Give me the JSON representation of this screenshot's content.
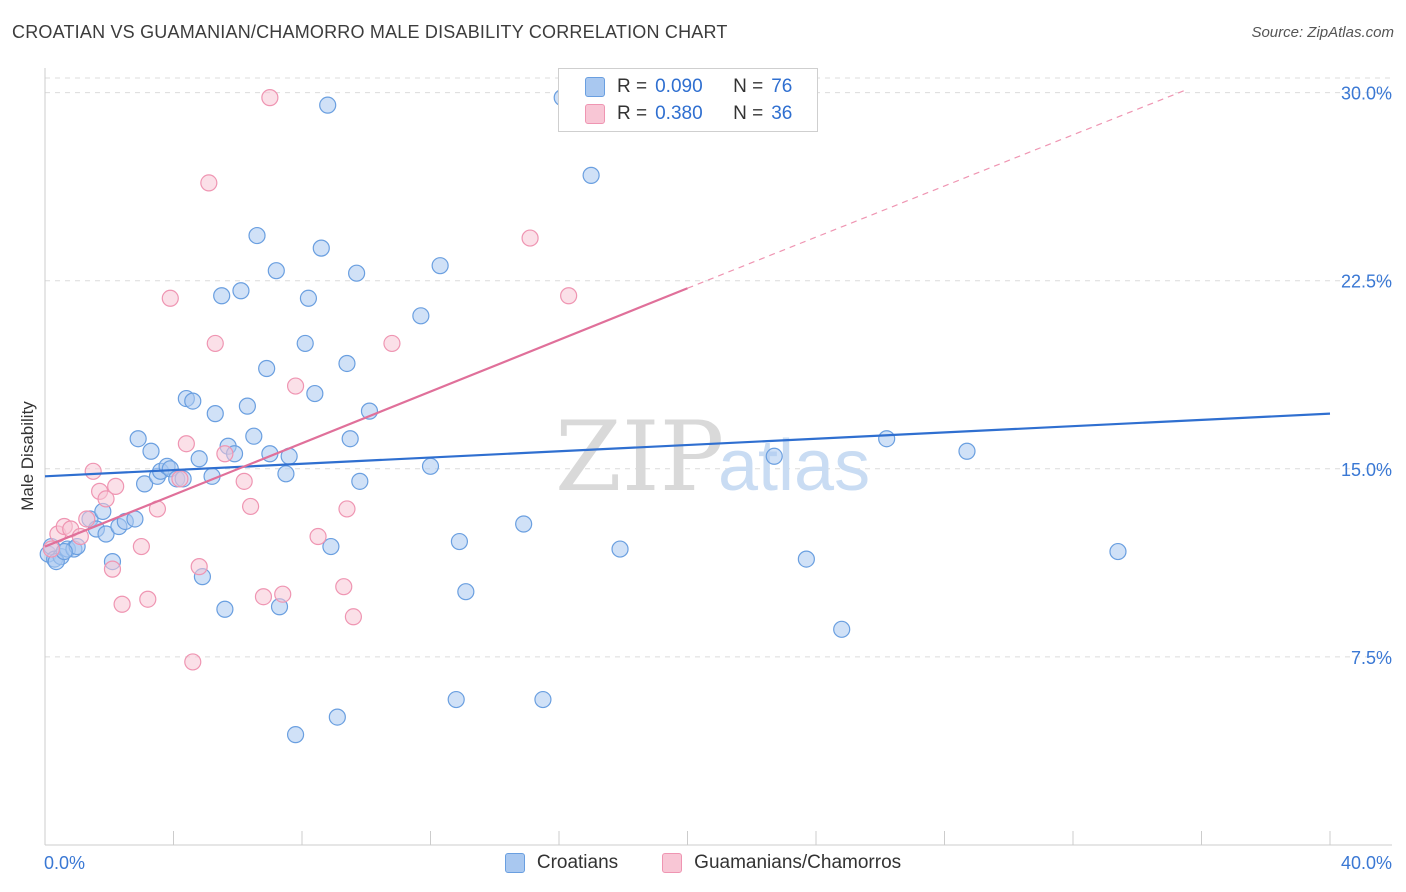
{
  "title": "CROATIAN VS GUAMANIAN/CHAMORRO MALE DISABILITY CORRELATION CHART",
  "source": "Source: ZipAtlas.com",
  "colors": {
    "blue_fill": "#a9c8f0",
    "blue_stroke": "#6a9fe0",
    "blue_line": "#2f6fd0",
    "pink_fill": "#f8c6d5",
    "pink_stroke": "#ef95b2",
    "pink_line": "#e0709a",
    "grid": "#dcdcdc",
    "axis_label": "#3a78d4"
  },
  "legend_top": [
    {
      "r_label": "R =",
      "r_value": "0.090",
      "n_label": "N =",
      "n_value": "76"
    },
    {
      "r_label": "R =",
      "r_value": "0.380",
      "n_label": "N =",
      "n_value": "36"
    }
  ],
  "legend_bottom": [
    "Croatians",
    "Guamanians/Chamorros"
  ],
  "watermark": {
    "zip": "ZIP",
    "atlas": "atlas"
  },
  "chart_data": {
    "type": "scatter",
    "title": "CROATIAN VS GUAMANIAN/CHAMORRO MALE DISABILITY CORRELATION CHART",
    "xlabel": "",
    "ylabel": "Male Disability",
    "xlim": [
      0,
      40
    ],
    "ylim": [
      0,
      31.5
    ],
    "x_tick_labels": [
      "0.0%",
      "40.0%"
    ],
    "y_ticks": [
      7.5,
      15.0,
      22.5,
      30.0
    ],
    "y_tick_labels": [
      "7.5%",
      "15.0%",
      "22.5%",
      "30.0%"
    ],
    "grid": true,
    "legend_position": "top-center",
    "series": [
      {
        "name": "Croatians",
        "r": 0.09,
        "n": 76,
        "trend": {
          "x": [
            0,
            40
          ],
          "y": [
            14.7,
            17.2
          ],
          "style": "solid"
        },
        "points": [
          [
            0.1,
            11.6
          ],
          [
            0.2,
            11.9
          ],
          [
            0.3,
            11.4
          ],
          [
            0.5,
            11.5
          ],
          [
            0.7,
            11.8
          ],
          [
            0.9,
            11.8
          ],
          [
            1.4,
            13.0
          ],
          [
            1.6,
            12.6
          ],
          [
            1.8,
            13.3
          ],
          [
            1.9,
            12.4
          ],
          [
            2.1,
            11.3
          ],
          [
            2.3,
            12.7
          ],
          [
            2.5,
            12.9
          ],
          [
            2.8,
            13.0
          ],
          [
            2.9,
            16.2
          ],
          [
            3.1,
            14.4
          ],
          [
            3.3,
            15.7
          ],
          [
            3.5,
            14.7
          ],
          [
            3.6,
            14.9
          ],
          [
            3.8,
            15.1
          ],
          [
            3.9,
            15.0
          ],
          [
            4.1,
            14.6
          ],
          [
            4.3,
            14.6
          ],
          [
            4.4,
            17.8
          ],
          [
            4.6,
            17.7
          ],
          [
            4.8,
            15.4
          ],
          [
            4.9,
            10.7
          ],
          [
            5.2,
            14.7
          ],
          [
            5.3,
            17.2
          ],
          [
            5.5,
            21.9
          ],
          [
            5.6,
            9.4
          ],
          [
            5.7,
            15.9
          ],
          [
            5.9,
            15.6
          ],
          [
            6.1,
            22.1
          ],
          [
            6.3,
            17.5
          ],
          [
            6.5,
            16.3
          ],
          [
            6.6,
            24.3
          ],
          [
            6.9,
            19.0
          ],
          [
            7.0,
            15.6
          ],
          [
            7.2,
            22.9
          ],
          [
            7.3,
            9.5
          ],
          [
            7.5,
            14.8
          ],
          [
            7.6,
            15.5
          ],
          [
            7.8,
            4.4
          ],
          [
            8.1,
            20.0
          ],
          [
            8.2,
            21.8
          ],
          [
            8.4,
            18.0
          ],
          [
            8.6,
            23.8
          ],
          [
            8.8,
            29.5
          ],
          [
            8.9,
            11.9
          ],
          [
            9.1,
            5.1
          ],
          [
            9.4,
            19.2
          ],
          [
            9.5,
            16.2
          ],
          [
            9.7,
            22.8
          ],
          [
            9.8,
            14.5
          ],
          [
            10.1,
            17.3
          ],
          [
            11.7,
            21.1
          ],
          [
            12.0,
            15.1
          ],
          [
            12.3,
            23.1
          ],
          [
            12.8,
            5.8
          ],
          [
            12.9,
            12.1
          ],
          [
            13.1,
            10.1
          ],
          [
            14.9,
            12.8
          ],
          [
            15.5,
            5.8
          ],
          [
            16.1,
            29.8
          ],
          [
            17.0,
            26.7
          ],
          [
            17.9,
            11.8
          ],
          [
            22.7,
            15.5
          ],
          [
            23.7,
            11.4
          ],
          [
            24.8,
            8.6
          ],
          [
            26.2,
            16.2
          ],
          [
            28.7,
            15.7
          ],
          [
            33.4,
            11.7
          ],
          [
            0.35,
            11.3
          ],
          [
            1.0,
            11.9
          ],
          [
            0.6,
            11.7
          ]
        ]
      },
      {
        "name": "Guamanians/Chamorros",
        "r": 0.38,
        "n": 36,
        "trend": {
          "x": [
            0,
            20
          ],
          "y": [
            11.9,
            22.2
          ],
          "style": "solid",
          "extended": {
            "x": [
              20,
              35.5
            ],
            "y": [
              22.2,
              30.1
            ],
            "style": "dashed"
          }
        },
        "points": [
          [
            0.2,
            11.8
          ],
          [
            0.4,
            12.4
          ],
          [
            0.6,
            12.7
          ],
          [
            0.8,
            12.6
          ],
          [
            1.1,
            12.3
          ],
          [
            1.3,
            13.0
          ],
          [
            1.5,
            14.9
          ],
          [
            1.7,
            14.1
          ],
          [
            1.9,
            13.8
          ],
          [
            2.1,
            11.0
          ],
          [
            2.2,
            14.3
          ],
          [
            2.4,
            9.6
          ],
          [
            3.0,
            11.9
          ],
          [
            3.2,
            9.8
          ],
          [
            3.5,
            13.4
          ],
          [
            3.9,
            21.8
          ],
          [
            4.2,
            14.6
          ],
          [
            4.4,
            16.0
          ],
          [
            4.6,
            7.3
          ],
          [
            4.8,
            11.1
          ],
          [
            5.1,
            26.4
          ],
          [
            5.3,
            20.0
          ],
          [
            5.6,
            15.6
          ],
          [
            6.2,
            14.5
          ],
          [
            6.4,
            13.5
          ],
          [
            6.8,
            9.9
          ],
          [
            7.0,
            29.8
          ],
          [
            7.4,
            10.0
          ],
          [
            7.8,
            18.3
          ],
          [
            8.5,
            12.3
          ],
          [
            9.3,
            10.3
          ],
          [
            9.4,
            13.4
          ],
          [
            9.6,
            9.1
          ],
          [
            10.8,
            20.0
          ],
          [
            15.1,
            24.2
          ],
          [
            16.3,
            21.9
          ]
        ]
      }
    ]
  }
}
